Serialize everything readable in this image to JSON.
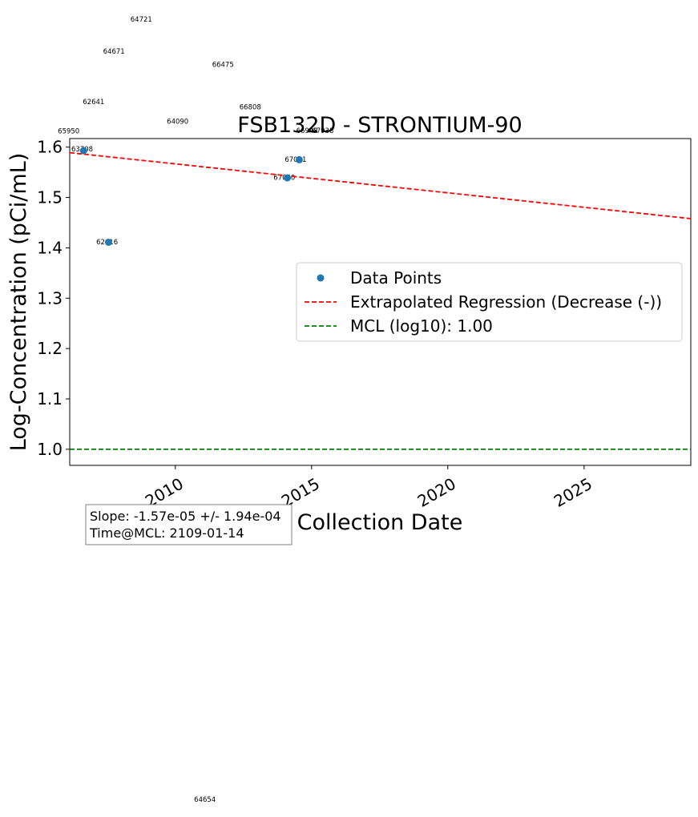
{
  "chart_data": {
    "type": "scatter",
    "title": "FSB132D - STRONTIUM-90",
    "xlabel": "Collection Date",
    "ylabel": "Log-Concentration (pCi/mL)",
    "x_type": "date",
    "xlim": [
      "2006-02-15",
      "2028-12-01"
    ],
    "ylim": [
      0.968,
      1.617
    ],
    "x_ticks": [
      {
        "value": "2010-01-01",
        "label": "2010"
      },
      {
        "value": "2015-01-01",
        "label": "2015"
      },
      {
        "value": "2020-01-01",
        "label": "2020"
      },
      {
        "value": "2025-01-01",
        "label": "2025"
      }
    ],
    "y_ticks": [
      {
        "value": 1.0,
        "label": "1.0"
      },
      {
        "value": 1.1,
        "label": "1.1"
      },
      {
        "value": 1.2,
        "label": "1.2"
      },
      {
        "value": 1.3,
        "label": "1.3"
      },
      {
        "value": 1.4,
        "label": "1.4"
      },
      {
        "value": 1.5,
        "label": "1.5"
      },
      {
        "value": 1.6,
        "label": "1.6"
      }
    ],
    "series": [
      {
        "name": "Data Points",
        "kind": "scatter",
        "color": "#1f77b4",
        "points": [
          {
            "x": "2006-08-20",
            "y": 1.593
          },
          {
            "x": "2007-07-20",
            "y": 1.411
          },
          {
            "x": "2014-02-10",
            "y": 1.539
          },
          {
            "x": "2014-07-20",
            "y": 1.575
          }
        ]
      },
      {
        "name": "Extrapolated Regression (Decrease (-))",
        "kind": "line",
        "style": "dashed",
        "color": "#ff0000",
        "points": [
          {
            "x": "2006-02-15",
            "y": 1.589
          },
          {
            "x": "2028-12-01",
            "y": 1.458
          }
        ]
      },
      {
        "name": "MCL (log10): 1.00",
        "kind": "hline",
        "style": "dashed",
        "color": "#008000",
        "y": 1.0
      }
    ],
    "point_labels": [
      {
        "text": "64721",
        "x": "2008-10-01",
        "y": 1.854
      },
      {
        "text": "64671",
        "x": "2007-10-01",
        "y": 1.79
      },
      {
        "text": "66475",
        "x": "2011-10-01",
        "y": 1.764
      },
      {
        "text": "62641",
        "x": "2007-01-01",
        "y": 1.69
      },
      {
        "text": "66808",
        "x": "2012-10-01",
        "y": 1.68
      },
      {
        "text": "64090",
        "x": "2010-02-01",
        "y": 1.651
      },
      {
        "text": "66948",
        "x": "2014-11-01",
        "y": 1.633
      },
      {
        "text": "67938",
        "x": "2015-06-01",
        "y": 1.633
      },
      {
        "text": "65950",
        "x": "2006-02-01",
        "y": 1.632
      },
      {
        "text": "63708",
        "x": "2006-08-01",
        "y": 1.596
      },
      {
        "text": "67081",
        "x": "2014-06-01",
        "y": 1.576
      },
      {
        "text": "67080",
        "x": "2014-01-01",
        "y": 1.54
      },
      {
        "text": "62616",
        "x": "2007-07-01",
        "y": 1.412
      },
      {
        "text": "64654",
        "x": "2011-02-01",
        "y": 0.305
      }
    ],
    "legend": {
      "position": "center-right",
      "entries": [
        "Data Points",
        "Extrapolated Regression (Decrease (-))",
        "MCL (log10): 1.00"
      ]
    },
    "annotation": {
      "lines": [
        "Slope: -1.57e-05 +/- 1.94e-04",
        "Time@MCL: 2109-01-14"
      ],
      "position": "bottom-left, below axis"
    },
    "grid": false
  }
}
